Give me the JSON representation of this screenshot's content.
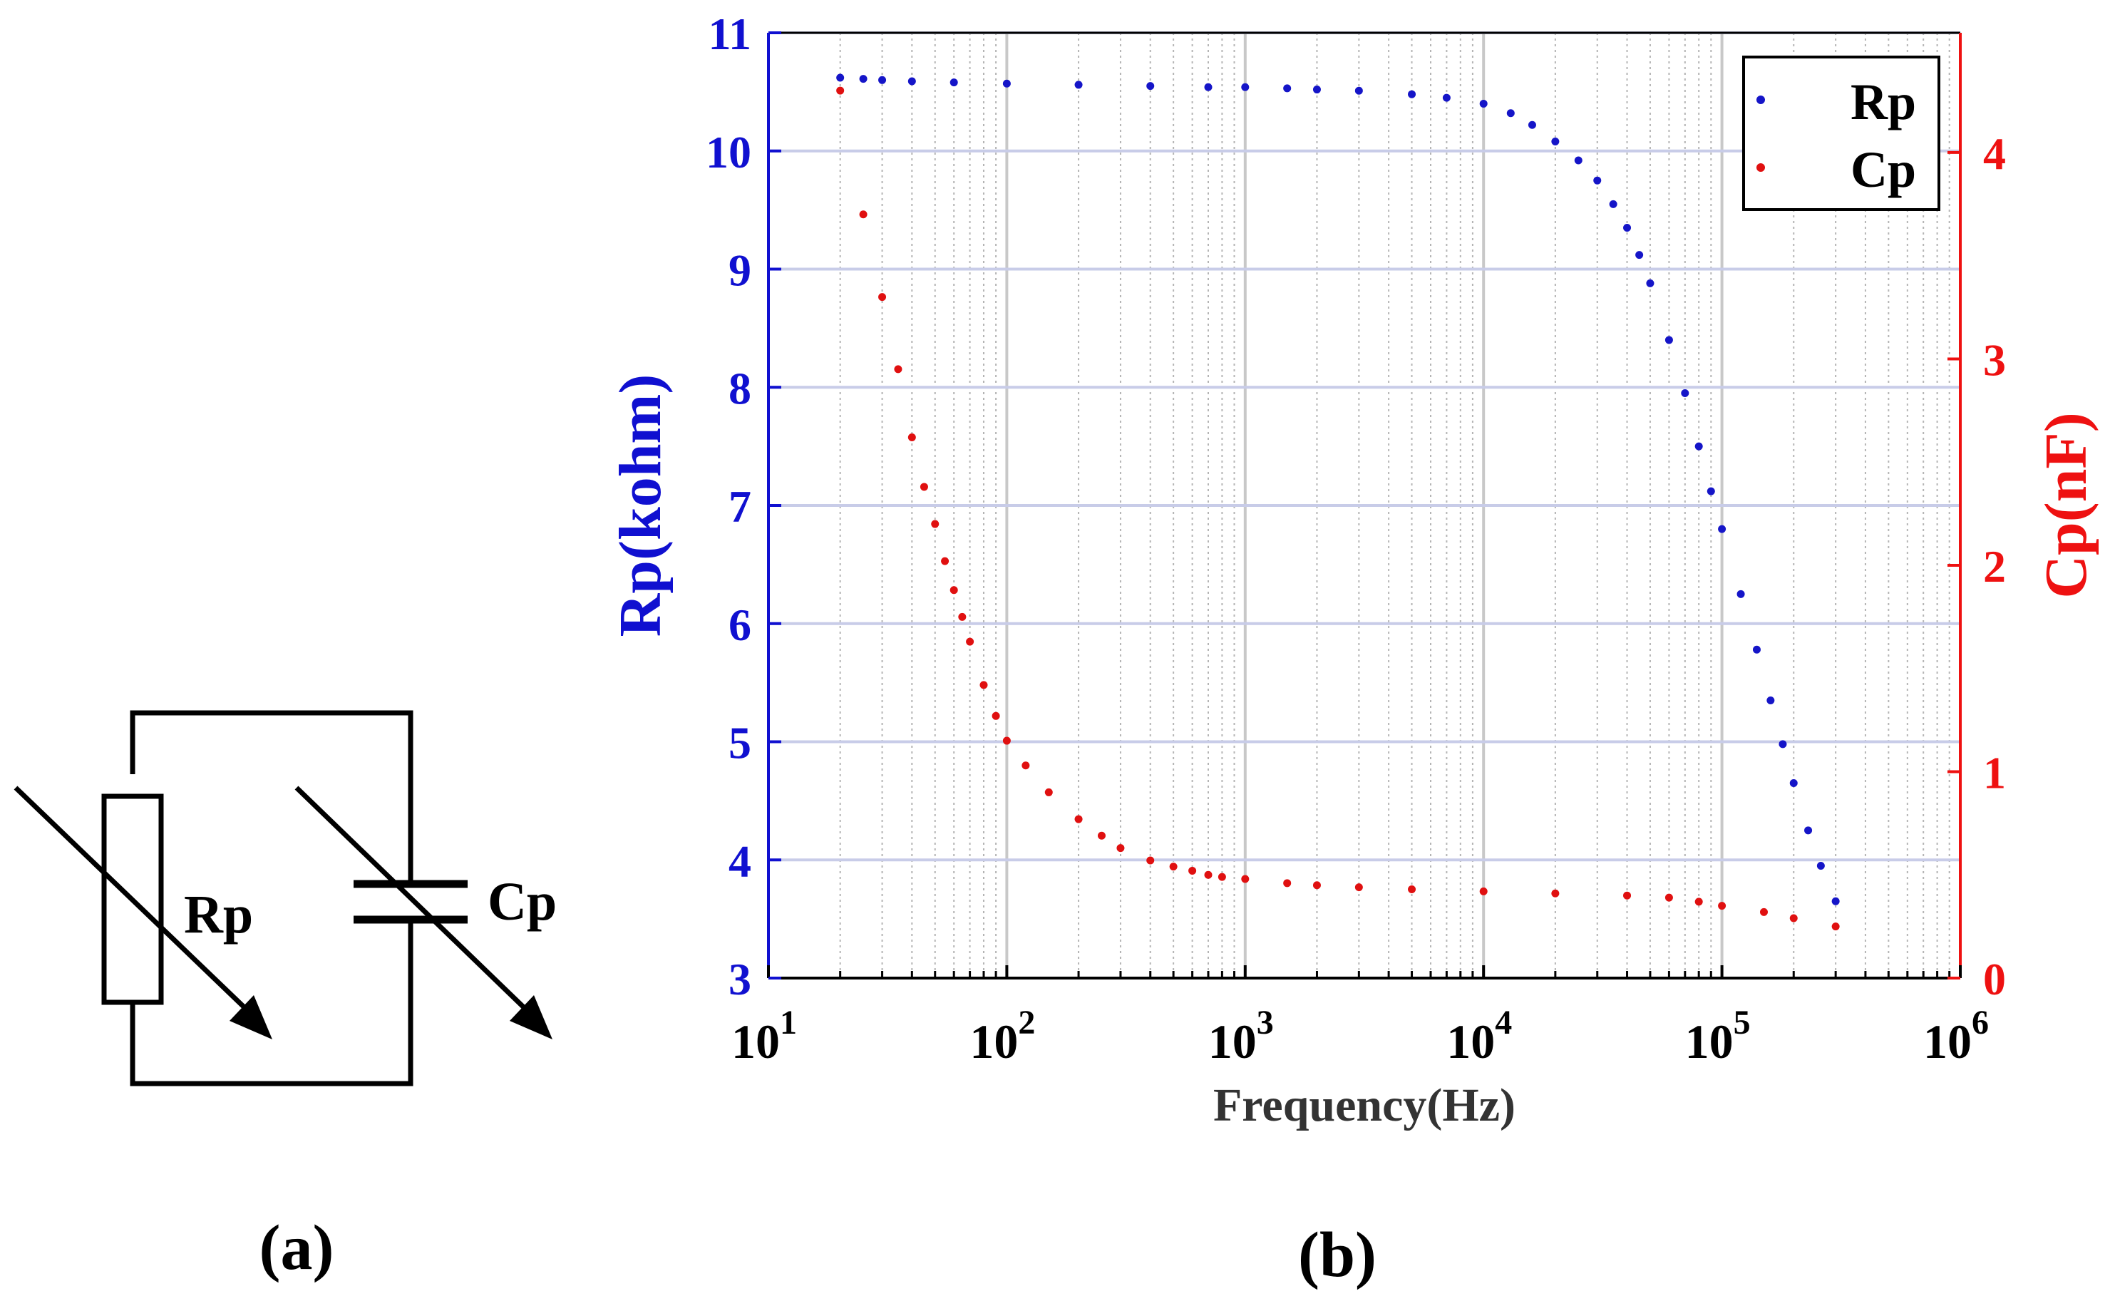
{
  "panel_a": {
    "label": "(a)",
    "resistor_label": "Rp",
    "capacitor_label": "Cp"
  },
  "panel_b": {
    "label": "(b)"
  },
  "colors": {
    "rp": "#1515c8",
    "cp": "#e01010",
    "axis_left": "#1010d0",
    "axis_right": "#ee1111",
    "grid_major": "#c8cce8",
    "grid_minor": "#b4b4b4"
  },
  "chart_data": {
    "type": "scatter",
    "xscale": "log",
    "xlabel": "Frequency(Hz)",
    "ylabel_left": "Rp(kohm)",
    "ylabel_right": "Cp(nF)",
    "xlim": [
      10,
      1000000
    ],
    "ylim_left": [
      3,
      11
    ],
    "ylim_right": [
      0,
      4.58
    ],
    "x_ticks": [
      {
        "value": 10,
        "base": "10",
        "exp": "1"
      },
      {
        "value": 100,
        "base": "10",
        "exp": "2"
      },
      {
        "value": 1000,
        "base": "10",
        "exp": "3"
      },
      {
        "value": 10000,
        "base": "10",
        "exp": "4"
      },
      {
        "value": 100000,
        "base": "10",
        "exp": "5"
      },
      {
        "value": 1000000,
        "base": "10",
        "exp": "6"
      }
    ],
    "y_ticks_left": [
      "3",
      "4",
      "5",
      "6",
      "7",
      "8",
      "9",
      "10",
      "11"
    ],
    "y_ticks_right": [
      "0",
      "1",
      "2",
      "3",
      "4"
    ],
    "legend": {
      "position": "top-right",
      "entries": [
        "Rp",
        "Cp"
      ]
    },
    "series": [
      {
        "name": "Rp",
        "axis": "left",
        "color": "#1515c8",
        "points": [
          [
            20,
            10.62
          ],
          [
            25,
            10.61
          ],
          [
            30,
            10.6
          ],
          [
            40,
            10.59
          ],
          [
            60,
            10.58
          ],
          [
            100,
            10.57
          ],
          [
            200,
            10.56
          ],
          [
            400,
            10.55
          ],
          [
            700,
            10.54
          ],
          [
            1000,
            10.54
          ],
          [
            1500,
            10.53
          ],
          [
            2000,
            10.52
          ],
          [
            3000,
            10.51
          ],
          [
            5000,
            10.48
          ],
          [
            7000,
            10.45
          ],
          [
            10000,
            10.4
          ],
          [
            13000,
            10.32
          ],
          [
            16000,
            10.22
          ],
          [
            20000,
            10.08
          ],
          [
            25000,
            9.92
          ],
          [
            30000,
            9.75
          ],
          [
            35000,
            9.55
          ],
          [
            40000,
            9.35
          ],
          [
            45000,
            9.12
          ],
          [
            50000,
            8.88
          ],
          [
            60000,
            8.4
          ],
          [
            70000,
            7.95
          ],
          [
            80000,
            7.5
          ],
          [
            90000,
            7.12
          ],
          [
            100000,
            6.8
          ],
          [
            120000,
            6.25
          ],
          [
            140000,
            5.78
          ],
          [
            160000,
            5.35
          ],
          [
            180000,
            4.98
          ],
          [
            200000,
            4.65
          ],
          [
            230000,
            4.25
          ],
          [
            260000,
            3.95
          ],
          [
            300000,
            3.65
          ]
        ]
      },
      {
        "name": "Cp",
        "axis": "right",
        "color": "#e01010",
        "points": [
          [
            20,
            4.3
          ],
          [
            25,
            3.7
          ],
          [
            30,
            3.3
          ],
          [
            35,
            2.95
          ],
          [
            40,
            2.62
          ],
          [
            45,
            2.38
          ],
          [
            50,
            2.2
          ],
          [
            55,
            2.02
          ],
          [
            60,
            1.88
          ],
          [
            65,
            1.75
          ],
          [
            70,
            1.63
          ],
          [
            80,
            1.42
          ],
          [
            90,
            1.27
          ],
          [
            100,
            1.15
          ],
          [
            120,
            1.03
          ],
          [
            150,
            0.9
          ],
          [
            200,
            0.77
          ],
          [
            250,
            0.69
          ],
          [
            300,
            0.63
          ],
          [
            400,
            0.57
          ],
          [
            500,
            0.54
          ],
          [
            600,
            0.52
          ],
          [
            700,
            0.5
          ],
          [
            800,
            0.49
          ],
          [
            1000,
            0.48
          ],
          [
            1500,
            0.46
          ],
          [
            2000,
            0.45
          ],
          [
            3000,
            0.44
          ],
          [
            5000,
            0.43
          ],
          [
            10000,
            0.42
          ],
          [
            20000,
            0.41
          ],
          [
            40000,
            0.4
          ],
          [
            60000,
            0.39
          ],
          [
            80000,
            0.37
          ],
          [
            100000,
            0.35
          ],
          [
            150000,
            0.32
          ],
          [
            200000,
            0.29
          ],
          [
            300000,
            0.25
          ]
        ]
      }
    ]
  }
}
